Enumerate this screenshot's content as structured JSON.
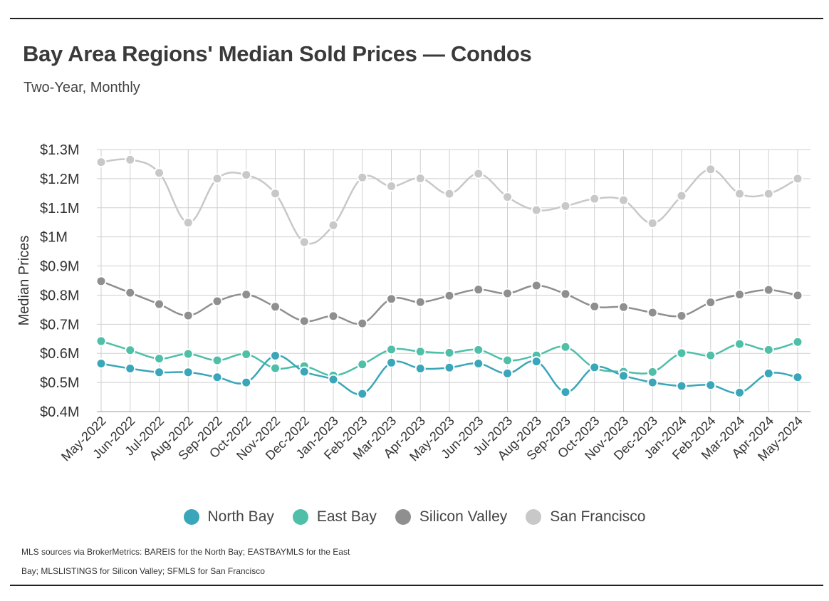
{
  "title": "Bay Area Regions' Median Sold Prices — Condos",
  "subtitle": "Two-Year, Monthly",
  "source": "MLS sources via BrokerMetrics: BAREIS for the North Bay; EASTBAYMLS for the East Bay; MLSLISTINGS for Silicon Valley; SFMLS for San Francisco",
  "chart_data": {
    "type": "line",
    "title": "Bay Area Regions' Median Sold Prices — Condos",
    "subtitle": "Two-Year, Monthly",
    "ylabel": "Median Prices",
    "xlabel": "",
    "ylim": [
      0.4,
      1.3
    ],
    "yticks": [
      0.4,
      0.5,
      0.6,
      0.7,
      0.8,
      0.9,
      1.0,
      1.1,
      1.2,
      1.3
    ],
    "ytick_labels": [
      "$0.4M",
      "$0.5M",
      "$0.6M",
      "$0.7M",
      "$0.8M",
      "$0.9M",
      "$1M",
      "$1.1M",
      "$1.2M",
      "$1.3M"
    ],
    "grid": true,
    "legend_position": "bottom",
    "categories": [
      "May-2022",
      "Jun-2022",
      "Jul-2022",
      "Aug-2022",
      "Sep-2022",
      "Oct-2022",
      "Nov-2022",
      "Dec-2022",
      "Jan-2023",
      "Feb-2023",
      "Mar-2023",
      "Apr-2023",
      "May-2023",
      "Jun-2023",
      "Jul-2023",
      "Aug-2023",
      "Sep-2023",
      "Oct-2023",
      "Nov-2023",
      "Dec-2023",
      "Jan-2024",
      "Feb-2024",
      "Mar-2024",
      "Apr-2024",
      "May-2024"
    ],
    "series": [
      {
        "name": "North Bay",
        "color": "#3aa6b9",
        "values": [
          0.565,
          0.548,
          0.535,
          0.535,
          0.518,
          0.5,
          0.592,
          0.537,
          0.51,
          0.461,
          0.568,
          0.548,
          0.551,
          0.565,
          0.531,
          0.572,
          0.467,
          0.552,
          0.523,
          0.5,
          0.488,
          0.491,
          0.465,
          0.531,
          0.518
        ]
      },
      {
        "name": "East Bay",
        "color": "#4fbfa8",
        "values": [
          0.642,
          0.611,
          0.582,
          0.598,
          0.576,
          0.597,
          0.549,
          0.556,
          0.524,
          0.562,
          0.613,
          0.606,
          0.602,
          0.612,
          0.576,
          0.593,
          0.622,
          0.55,
          0.537,
          0.536,
          0.601,
          0.593,
          0.632,
          0.612,
          0.639
        ]
      },
      {
        "name": "Silicon Valley",
        "color": "#8f8f8f",
        "values": [
          0.848,
          0.808,
          0.769,
          0.73,
          0.779,
          0.802,
          0.76,
          0.711,
          0.728,
          0.703,
          0.787,
          0.776,
          0.798,
          0.819,
          0.806,
          0.833,
          0.804,
          0.761,
          0.759,
          0.74,
          0.729,
          0.775,
          0.802,
          0.818,
          0.799
        ]
      },
      {
        "name": "San Francisco",
        "color": "#c8c8c8",
        "values": [
          1.257,
          1.265,
          1.22,
          1.049,
          1.2,
          1.213,
          1.149,
          0.982,
          1.04,
          1.204,
          1.174,
          1.201,
          1.148,
          1.217,
          1.137,
          1.092,
          1.106,
          1.131,
          1.126,
          1.047,
          1.141,
          1.232,
          1.148,
          1.148,
          1.2
        ]
      }
    ]
  }
}
